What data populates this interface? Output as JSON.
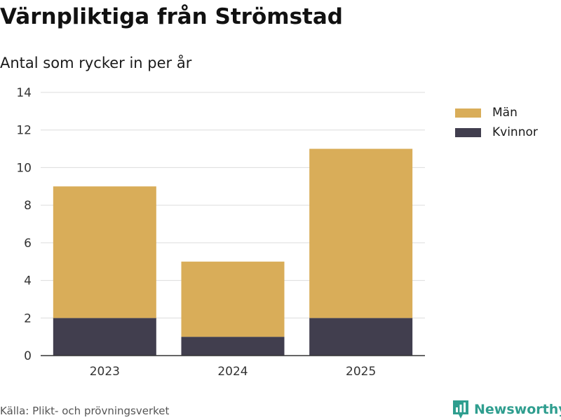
{
  "header": {
    "title": "Värnpliktiga från Strömstad",
    "subtitle": "Antal som rycker in per år"
  },
  "chart_data": {
    "type": "bar",
    "stacked": true,
    "categories": [
      "2023",
      "2024",
      "2025"
    ],
    "series": [
      {
        "name": "Kvinnor",
        "values": [
          2,
          1,
          2
        ],
        "color": "#413e4e"
      },
      {
        "name": "Män",
        "values": [
          7,
          4,
          9
        ],
        "color": "#d9ad59"
      }
    ],
    "legend_order": [
      "Män",
      "Kvinnor"
    ],
    "ylim": [
      0,
      14
    ],
    "yticks": [
      0,
      2,
      4,
      6,
      8,
      10,
      12,
      14
    ],
    "grid": true,
    "legend_position": "top-right",
    "xlabel": "",
    "ylabel": ""
  },
  "footer": {
    "source": "Källa: Plikt- och prövningsverket",
    "brand": "Newsworthy",
    "brand_color": "#2f9e8f"
  }
}
